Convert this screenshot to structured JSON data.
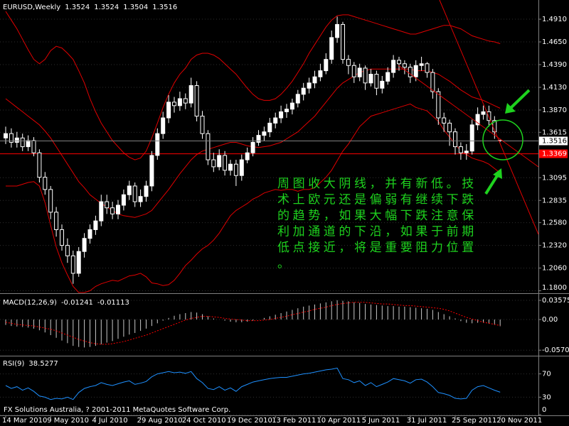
{
  "chart_data": [
    {
      "type": "candlestick",
      "title": "EURUSD,Weekly",
      "categories": [
        "14 Mar 2010",
        null,
        null,
        null,
        null,
        null,
        null,
        null,
        "9 May 2010",
        null,
        null,
        null,
        null,
        null,
        null,
        null,
        "4 Jul 2010",
        null,
        null,
        null,
        null,
        null,
        null,
        null,
        "29 Aug 2010",
        null,
        null,
        null,
        null,
        null,
        null,
        null,
        "24 Oct 2010",
        null,
        null,
        null,
        null,
        null,
        null,
        null,
        "19 Dec 2010",
        null,
        null,
        null,
        null,
        null,
        null,
        null,
        "13 Feb 2011",
        null,
        null,
        null,
        null,
        null,
        null,
        null,
        "10 Apr 2011",
        null,
        null,
        null,
        null,
        null,
        null,
        null,
        "5 Jun 2011",
        null,
        null,
        null,
        null,
        null,
        null,
        null,
        "31 Jul 2011",
        null,
        null,
        null,
        null,
        null,
        null,
        null,
        "25 Sep 2011",
        null,
        null,
        null,
        null,
        null,
        null,
        null,
        "20 Nov 2011"
      ],
      "open": [
        1.355,
        1.36,
        1.35,
        1.355,
        1.345,
        1.352,
        1.338,
        1.31,
        1.296,
        1.27,
        1.25,
        1.232,
        1.22,
        1.2,
        1.225,
        1.24,
        1.25,
        1.26,
        1.282,
        1.275,
        1.268,
        1.278,
        1.29,
        1.3,
        1.282,
        1.288,
        1.3,
        1.335,
        1.36,
        1.378,
        1.396,
        1.392,
        1.4,
        1.395,
        1.415,
        1.38,
        1.36,
        1.33,
        1.322,
        1.335,
        1.318,
        1.325,
        1.312,
        1.33,
        1.338,
        1.35,
        1.358,
        1.362,
        1.372,
        1.378,
        1.385,
        1.388,
        1.395,
        1.405,
        1.412,
        1.418,
        1.425,
        1.432,
        1.445,
        1.47,
        1.485,
        1.445,
        1.438,
        1.425,
        1.435,
        1.418,
        1.428,
        1.412,
        1.42,
        1.43,
        1.444,
        1.44,
        1.436,
        1.425,
        1.438,
        1.44,
        1.43,
        1.408,
        1.378,
        1.372,
        1.362,
        1.345,
        1.338,
        1.34,
        1.37,
        1.382,
        1.385,
        1.375,
        1.3524
      ],
      "high": [
        1.368,
        1.366,
        1.362,
        1.36,
        1.358,
        1.356,
        1.342,
        1.316,
        1.3,
        1.276,
        1.256,
        1.24,
        1.226,
        1.23,
        1.246,
        1.256,
        1.266,
        1.29,
        1.29,
        1.282,
        1.284,
        1.296,
        1.306,
        1.304,
        1.296,
        1.306,
        1.34,
        1.366,
        1.385,
        1.404,
        1.402,
        1.408,
        1.406,
        1.424,
        1.42,
        1.386,
        1.364,
        1.338,
        1.342,
        1.34,
        1.33,
        1.33,
        1.336,
        1.344,
        1.356,
        1.364,
        1.368,
        1.378,
        1.384,
        1.392,
        1.394,
        1.4,
        1.41,
        1.418,
        1.424,
        1.432,
        1.44,
        1.452,
        1.478,
        1.494,
        1.488,
        1.45,
        1.442,
        1.44,
        1.438,
        1.434,
        1.432,
        1.426,
        1.436,
        1.45,
        1.448,
        1.444,
        1.44,
        1.444,
        1.448,
        1.442,
        1.434,
        1.412,
        1.384,
        1.376,
        1.366,
        1.35,
        1.348,
        1.376,
        1.39,
        1.392,
        1.392,
        1.38,
        1.3524
      ],
      "low": [
        1.348,
        1.344,
        1.344,
        1.34,
        1.34,
        1.334,
        1.304,
        1.29,
        1.262,
        1.242,
        1.226,
        1.212,
        1.188,
        1.196,
        1.218,
        1.234,
        1.244,
        1.254,
        1.268,
        1.262,
        1.262,
        1.272,
        1.284,
        1.276,
        1.276,
        1.282,
        1.294,
        1.33,
        1.354,
        1.372,
        1.384,
        1.386,
        1.388,
        1.39,
        1.374,
        1.354,
        1.324,
        1.316,
        1.318,
        1.312,
        1.312,
        1.3,
        1.306,
        1.326,
        1.334,
        1.346,
        1.352,
        1.356,
        1.366,
        1.372,
        1.378,
        1.382,
        1.39,
        1.398,
        1.406,
        1.412,
        1.42,
        1.428,
        1.44,
        1.464,
        1.44,
        1.428,
        1.418,
        1.42,
        1.41,
        1.414,
        1.404,
        1.406,
        1.416,
        1.424,
        1.432,
        1.428,
        1.418,
        1.42,
        1.432,
        1.424,
        1.4,
        1.37,
        1.362,
        1.346,
        1.336,
        1.33,
        1.33,
        1.336,
        1.364,
        1.376,
        1.368,
        1.354,
        1.3504
      ],
      "close": [
        1.36,
        1.35,
        1.355,
        1.345,
        1.352,
        1.338,
        1.31,
        1.296,
        1.27,
        1.25,
        1.232,
        1.22,
        1.2,
        1.225,
        1.24,
        1.25,
        1.26,
        1.282,
        1.275,
        1.268,
        1.278,
        1.29,
        1.3,
        1.282,
        1.288,
        1.3,
        1.335,
        1.36,
        1.378,
        1.396,
        1.392,
        1.4,
        1.395,
        1.415,
        1.38,
        1.36,
        1.33,
        1.322,
        1.335,
        1.318,
        1.325,
        1.312,
        1.33,
        1.338,
        1.35,
        1.358,
        1.362,
        1.372,
        1.378,
        1.385,
        1.388,
        1.395,
        1.405,
        1.412,
        1.418,
        1.425,
        1.432,
        1.445,
        1.47,
        1.485,
        1.445,
        1.438,
        1.425,
        1.435,
        1.418,
        1.428,
        1.412,
        1.42,
        1.43,
        1.444,
        1.44,
        1.436,
        1.425,
        1.438,
        1.44,
        1.43,
        1.408,
        1.378,
        1.372,
        1.362,
        1.345,
        1.338,
        1.34,
        1.37,
        1.382,
        1.385,
        1.375,
        1.362,
        1.3516
      ],
      "series": [
        {
          "color": "#e00000",
          "values": [
            1.5,
            1.49,
            1.48,
            1.468,
            1.456,
            1.445,
            1.44,
            1.445,
            1.455,
            1.46,
            1.458,
            1.452,
            1.445,
            1.432,
            1.418,
            1.4,
            1.385,
            1.372,
            1.362,
            1.352,
            1.345,
            1.338,
            1.333,
            1.33,
            1.332,
            1.34,
            1.355,
            1.372,
            1.39,
            1.405,
            1.418,
            1.428,
            1.435,
            1.445,
            1.45,
            1.452,
            1.452,
            1.45,
            1.446,
            1.44,
            1.434,
            1.428,
            1.42,
            1.412,
            1.405,
            1.4,
            1.398,
            1.398,
            1.4,
            1.405,
            1.412,
            1.42,
            1.43,
            1.44,
            1.452,
            1.462,
            1.472,
            1.482,
            1.49,
            1.495,
            1.496,
            1.496,
            1.494,
            1.492,
            1.49,
            1.488,
            1.486,
            1.484,
            1.482,
            1.48,
            1.478,
            1.476,
            1.474,
            1.474,
            1.476,
            1.478,
            1.48,
            1.482,
            1.484,
            1.484,
            1.482,
            1.48,
            1.476,
            1.472,
            1.47,
            1.468,
            1.466,
            1.465,
            1.463
          ]
        },
        {
          "color": "#e00000",
          "values": [
            1.4,
            1.395,
            1.39,
            1.385,
            1.38,
            1.375,
            1.37,
            1.363,
            1.355,
            1.345,
            1.335,
            1.325,
            1.315,
            1.305,
            1.298,
            1.29,
            1.285,
            1.28,
            1.276,
            1.272,
            1.268,
            1.266,
            1.265,
            1.264,
            1.266,
            1.268,
            1.272,
            1.28,
            1.288,
            1.296,
            1.305,
            1.314,
            1.322,
            1.33,
            1.336,
            1.34,
            1.342,
            1.344,
            1.346,
            1.348,
            1.35,
            1.35,
            1.348,
            1.346,
            1.345,
            1.344,
            1.345,
            1.346,
            1.348,
            1.35,
            1.354,
            1.358,
            1.362,
            1.368,
            1.374,
            1.38,
            1.388,
            1.396,
            1.404,
            1.412,
            1.418,
            1.422,
            1.426,
            1.43,
            1.432,
            1.434,
            1.434,
            1.434,
            1.434,
            1.434,
            1.434,
            1.434,
            1.434,
            1.432,
            1.432,
            1.432,
            1.43,
            1.428,
            1.424,
            1.42,
            1.415,
            1.41,
            1.406,
            1.402,
            1.4,
            1.398,
            1.395,
            1.392,
            1.389
          ]
        },
        {
          "color": "#e00000",
          "values": [
            1.3,
            1.3,
            1.3,
            1.302,
            1.304,
            1.305,
            1.3,
            1.281,
            1.255,
            1.23,
            1.212,
            1.198,
            1.185,
            1.178,
            1.178,
            1.18,
            1.185,
            1.188,
            1.19,
            1.192,
            1.191,
            1.194,
            1.197,
            1.198,
            1.2,
            1.196,
            1.189,
            1.188,
            1.186,
            1.187,
            1.192,
            1.2,
            1.209,
            1.215,
            1.222,
            1.228,
            1.232,
            1.238,
            1.246,
            1.256,
            1.266,
            1.272,
            1.276,
            1.28,
            1.285,
            1.288,
            1.292,
            1.294,
            1.296,
            1.295,
            1.296,
            1.296,
            1.294,
            1.296,
            1.296,
            1.298,
            1.304,
            1.31,
            1.318,
            1.329,
            1.34,
            1.348,
            1.358,
            1.368,
            1.374,
            1.38,
            1.382,
            1.384,
            1.386,
            1.388,
            1.39,
            1.392,
            1.394,
            1.39,
            1.388,
            1.386,
            1.38,
            1.374,
            1.364,
            1.356,
            1.348,
            1.34,
            1.336,
            1.332,
            1.33,
            1.328,
            1.325,
            1.32,
            1.315
          ]
        }
      ],
      "hline": 1.3369,
      "hline_color": "#ff0000",
      "ylim": [
        1.178,
        1.513
      ],
      "yticks": [
        {
          "value": 1.491,
          "label": "1.4910"
        },
        {
          "value": 1.465,
          "label": "1.4650"
        },
        {
          "value": 1.439,
          "label": "1.4390"
        },
        {
          "value": 1.413,
          "label": "1.4130"
        },
        {
          "value": 1.387,
          "label": "1.3870"
        },
        1.3615,
        1.3095,
        1.2835,
        {
          "value": 1.258,
          "label": "1.2580"
        },
        {
          "value": 1.232,
          "label": "1.2320"
        },
        {
          "value": 1.206,
          "label": "1.2060"
        },
        {
          "value": 1.18,
          "label": "1.1800"
        }
      ],
      "grid": true,
      "annotation": [
        "周图收大阴线，并有新低。技",
        "术上欧元还是偏弱有继续下跌",
        "的趋势，如果大幅下跌注意保",
        "利加通道的下沿，如果于前期",
        "低点接近，将是重要阻力位置",
        "。"
      ]
    },
    {
      "type": "macd",
      "title": "MACD(12,26,9)",
      "series": [
        {
          "style": "histogram",
          "color": "#c8c8c8",
          "values": [
            -0.01,
            -0.012,
            -0.013,
            -0.014,
            -0.015,
            -0.017,
            -0.02,
            -0.024,
            -0.029,
            -0.034,
            -0.039,
            -0.044,
            -0.049,
            -0.051,
            -0.052,
            -0.051,
            -0.049,
            -0.046,
            -0.043,
            -0.04,
            -0.036,
            -0.032,
            -0.028,
            -0.025,
            -0.021,
            -0.017,
            -0.012,
            -0.007,
            -0.002,
            0.003,
            0.007,
            0.01,
            0.012,
            0.014,
            0.013,
            0.01,
            0.006,
            0.002,
            0.0,
            -0.002,
            -0.004,
            -0.005,
            -0.005,
            -0.004,
            -0.002,
            0.0,
            0.003,
            0.006,
            0.009,
            0.012,
            0.015,
            0.018,
            0.021,
            0.024,
            0.026,
            0.028,
            0.03,
            0.032,
            0.034,
            0.036,
            0.035,
            0.034,
            0.032,
            0.031,
            0.029,
            0.028,
            0.027,
            0.026,
            0.025,
            0.025,
            0.024,
            0.024,
            0.023,
            0.022,
            0.021,
            0.02,
            0.018,
            0.014,
            0.01,
            0.006,
            0.002,
            -0.003,
            -0.006,
            -0.007,
            -0.006,
            -0.006,
            -0.008,
            -0.01,
            -0.01241
          ]
        },
        {
          "style": "dotted",
          "color": "#ff0000",
          "values": [
            -0.005,
            -0.007,
            -0.009,
            -0.01,
            -0.011,
            -0.012,
            -0.014,
            -0.016,
            -0.018,
            -0.021,
            -0.025,
            -0.029,
            -0.033,
            -0.037,
            -0.04,
            -0.043,
            -0.045,
            -0.046,
            -0.046,
            -0.045,
            -0.043,
            -0.041,
            -0.038,
            -0.035,
            -0.032,
            -0.029,
            -0.025,
            -0.021,
            -0.017,
            -0.013,
            -0.009,
            -0.005,
            -0.001,
            0.002,
            0.004,
            0.006,
            0.006,
            0.005,
            0.004,
            0.002,
            0.001,
            0.0,
            -0.001,
            -0.002,
            -0.002,
            -0.002,
            -0.001,
            0.0,
            0.002,
            0.004,
            0.006,
            0.009,
            0.011,
            0.014,
            0.016,
            0.019,
            0.021,
            0.023,
            0.026,
            0.028,
            0.03,
            0.031,
            0.032,
            0.032,
            0.032,
            0.031,
            0.03,
            0.029,
            0.029,
            0.028,
            0.027,
            0.026,
            0.026,
            0.025,
            0.024,
            0.023,
            0.022,
            0.021,
            0.019,
            0.016,
            0.012,
            0.008,
            0.004,
            0.001,
            -0.002,
            -0.005,
            -0.007,
            -0.009,
            -0.01113
          ]
        }
      ],
      "ylim": [
        -0.066,
        0.045
      ],
      "yticks": [
        0.03575,
        {
          "value": 0,
          "label": "0.00"
        },
        -0.05702
      ]
    },
    {
      "type": "line",
      "title": "RSI(9)",
      "series": [
        {
          "color": "#1e90ff",
          "values": [
            50,
            45,
            48,
            42,
            46,
            40,
            32,
            30,
            26,
            28,
            27,
            30,
            26,
            38,
            45,
            48,
            50,
            55,
            52,
            50,
            53,
            56,
            58,
            52,
            54,
            57,
            65,
            70,
            72,
            74,
            72,
            73,
            71,
            74,
            62,
            55,
            45,
            43,
            48,
            42,
            46,
            40,
            48,
            52,
            56,
            58,
            60,
            62,
            63,
            64,
            64,
            66,
            68,
            70,
            71,
            73,
            75,
            77,
            78,
            80,
            62,
            60,
            55,
            58,
            50,
            55,
            48,
            52,
            56,
            62,
            60,
            58,
            54,
            60,
            61,
            56,
            48,
            38,
            36,
            33,
            28,
            27,
            28,
            42,
            48,
            50,
            46,
            42,
            38.5277
          ]
        }
      ],
      "ylim": [
        0,
        100
      ],
      "yticks": [
        70,
        30,
        0
      ]
    }
  ],
  "footer": "FX Solutions Australia, ? 2001-2011 MetaQuotes Software Corp."
}
